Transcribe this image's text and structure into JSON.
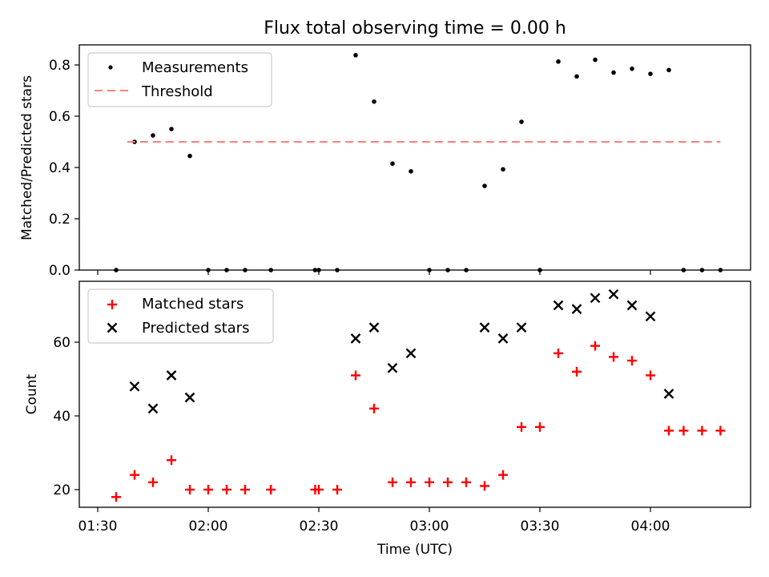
{
  "title": "Flux total observing time = 0.00 h",
  "colors": {
    "measurement": "#000000",
    "threshold": "#ff7f7f",
    "matched": "#ff0000",
    "predicted": "#000000"
  },
  "chart_data": [
    {
      "type": "scatter",
      "ylabel": "Matched/Predicted stars",
      "ylim": [
        0,
        0.88
      ],
      "yticks": [
        "0.0",
        "0.2",
        "0.4",
        "0.6",
        "0.8"
      ],
      "legend_placement": "upper-left",
      "series": [
        {
          "name": "Measurements",
          "x": [
            "01:35",
            "01:40",
            "01:45",
            "01:50",
            "01:55",
            "02:00",
            "02:05",
            "02:10",
            "02:17",
            "02:29",
            "02:30",
            "02:35",
            "02:40",
            "02:45",
            "02:50",
            "02:55",
            "03:00",
            "03:05",
            "03:10",
            "03:15",
            "03:20",
            "03:25",
            "03:30",
            "03:35",
            "03:40",
            "03:45",
            "03:50",
            "03:55",
            "04:00",
            "04:05",
            "04:09",
            "04:14",
            "04:19"
          ],
          "y": [
            0.0,
            0.5,
            0.525,
            0.55,
            0.445,
            0.0,
            0.0,
            0.0,
            0.0,
            0.0,
            0.0,
            0.0,
            0.838,
            0.657,
            0.415,
            0.385,
            0.0,
            0.0,
            0.0,
            0.328,
            0.393,
            0.578,
            0.0,
            0.813,
            0.755,
            0.82,
            0.77,
            0.785,
            0.765,
            0.78,
            0.0,
            0.0,
            0.0
          ]
        },
        {
          "name": "Threshold",
          "style": "dashed",
          "x": [
            "01:38",
            "04:19"
          ],
          "y": [
            0.5,
            0.5
          ]
        }
      ]
    },
    {
      "type": "scatter",
      "xlabel": "Time (UTC)",
      "ylabel": "Count",
      "ylim": [
        15,
        75
      ],
      "yticks": [
        "20",
        "40",
        "60"
      ],
      "xticks": [
        "01:30",
        "02:00",
        "02:30",
        "03:00",
        "03:30",
        "04:00"
      ],
      "legend_placement": "upper-left",
      "series": [
        {
          "name": "Matched stars",
          "marker": "+",
          "x": [
            "01:35",
            "01:40",
            "01:45",
            "01:50",
            "01:55",
            "02:00",
            "02:05",
            "02:10",
            "02:17",
            "02:29",
            "02:30",
            "02:35",
            "02:40",
            "02:45",
            "02:50",
            "02:55",
            "03:00",
            "03:05",
            "03:10",
            "03:15",
            "03:20",
            "03:25",
            "03:30",
            "03:35",
            "03:40",
            "03:45",
            "03:50",
            "03:55",
            "04:00",
            "04:05",
            "04:09",
            "04:14",
            "04:19"
          ],
          "y": [
            18,
            24,
            22,
            28,
            20,
            20,
            20,
            20,
            20,
            20,
            20,
            20,
            51,
            42,
            22,
            22,
            22,
            22,
            22,
            21,
            24,
            37,
            37,
            57,
            52,
            59,
            56,
            55,
            51,
            36,
            36,
            36,
            36
          ]
        },
        {
          "name": "Predicted stars",
          "marker": "x",
          "x": [
            "01:40",
            "01:45",
            "01:50",
            "01:55",
            "02:40",
            "02:45",
            "02:50",
            "02:55",
            "03:15",
            "03:20",
            "03:25",
            "03:35",
            "03:40",
            "03:45",
            "03:50",
            "03:55",
            "04:00",
            "04:05"
          ],
          "y": [
            48,
            42,
            51,
            45,
            61,
            64,
            53,
            57,
            64,
            61,
            64,
            70,
            69,
            72,
            73,
            70,
            67,
            46
          ]
        }
      ]
    }
  ]
}
